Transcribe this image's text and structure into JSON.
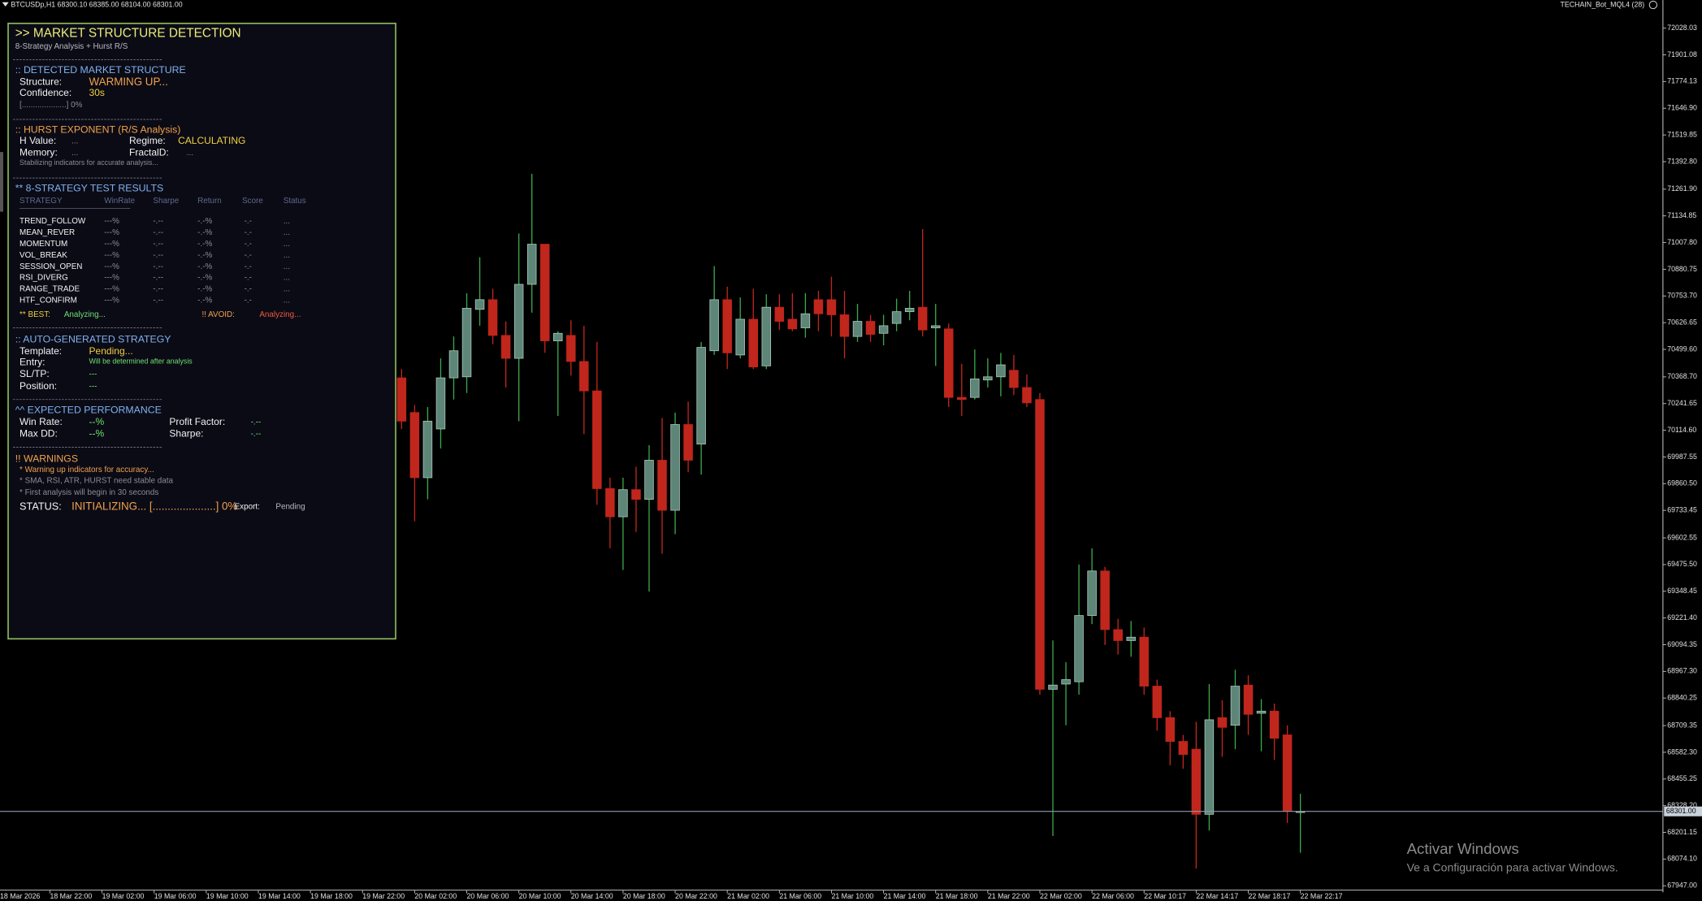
{
  "window": {
    "symbol_info": "BTCUSDp,H1  68300.10 68385.00 68104.00 68301.00",
    "ea_name": "TECHAIN_Bot_MQL4 (28)",
    "watermark_title": "Activar Windows",
    "watermark_text": "Ve a Configuración para activar Windows."
  },
  "panel": {
    "title": ">> MARKET STRUCTURE DETECTION",
    "subtitle": "8-Strategy Analysis + Hurst R/S",
    "structure": {
      "heading": ":: DETECTED MARKET STRUCTURE",
      "structure_label": "Structure:",
      "structure_value": "WARMING UP...",
      "confidence_label": "Confidence:",
      "confidence_value": "30s",
      "progress": "[....................] 0%"
    },
    "hurst": {
      "heading": ":: HURST EXPONENT (R/S Analysis)",
      "h_label": "H Value:",
      "h_value": "...",
      "regime_label": "Regime:",
      "regime_value": "CALCULATING",
      "memory_label": "Memory:",
      "memory_value": "...",
      "fractal_label": "FractalD:",
      "fractal_value": "...",
      "note": "Stabilizing indicators for accurate analysis..."
    },
    "strategies": {
      "heading": "** 8-STRATEGY TEST RESULTS",
      "columns": [
        "STRATEGY",
        "WinRate",
        "Sharpe",
        "Return",
        "Score",
        "Status"
      ],
      "rows": [
        [
          "TREND_FOLLOW",
          "---%",
          "-.--",
          "-.-%",
          "-.-",
          "..."
        ],
        [
          "MEAN_REVER",
          "---%",
          "-.--",
          "-.-%",
          "-.-",
          "..."
        ],
        [
          "MOMENTUM",
          "---%",
          "-.--",
          "-.-%",
          "-.-",
          "..."
        ],
        [
          "VOL_BREAK",
          "---%",
          "-.--",
          "-.-%",
          "-.-",
          "..."
        ],
        [
          "SESSION_OPEN",
          "---%",
          "-.--",
          "-.-%",
          "-.-",
          "..."
        ],
        [
          "RSI_DIVERG",
          "---%",
          "-.--",
          "-.-%",
          "-.-",
          "..."
        ],
        [
          "RANGE_TRADE",
          "---%",
          "-.--",
          "-.-%",
          "-.-",
          "..."
        ],
        [
          "HTF_CONFIRM",
          "---%",
          "-.--",
          "-.-%",
          "-.-",
          "..."
        ]
      ],
      "best_label": "** BEST:",
      "best_value": "Analyzing...",
      "avoid_label": "!! AVOID:",
      "avoid_value": "Analyzing..."
    },
    "auto": {
      "heading": ":: AUTO-GENERATED STRATEGY",
      "template_label": "Template:",
      "template_value": "Pending...",
      "entry_label": "Entry:",
      "entry_value": "Will be determined after analysis",
      "sltp_label": "SL/TP:",
      "sltp_value": "---",
      "position_label": "Position:",
      "position_value": "---"
    },
    "performance": {
      "heading": "^^ EXPECTED PERFORMANCE",
      "winrate_label": "Win Rate:",
      "winrate_value": "--%",
      "pf_label": "Profit Factor:",
      "pf_value": "-.--",
      "maxdd_label": "Max DD:",
      "maxdd_value": "--%",
      "sharpe_label": "Sharpe:",
      "sharpe_value": "-.--"
    },
    "warnings": {
      "heading": "!! WARNINGS",
      "items": [
        "* Warning up indicators for accuracy...",
        "* SMA, RSI, ATR, HURST need stable data",
        "* First analysis will begin in 30 seconds"
      ]
    },
    "status": {
      "label": "STATUS:",
      "value": "INITIALIZING... [.....................] 0%",
      "export_label": "Export:",
      "export_value": "Pending"
    }
  },
  "chart_data": {
    "type": "candlestick",
    "colors": {
      "up": "#5d8678",
      "up_wick": "#3aa84a",
      "down": "#c0261c"
    },
    "ylim": [
      67916,
      72162
    ],
    "yticks": [
      72028.03,
      71901.08,
      71774.13,
      {
        "value": 71646.9,
        "label": "71646.90"
      },
      71519.85,
      {
        "value": 71392.8,
        "label": "71392.80"
      },
      {
        "value": 71261.9,
        "label": "71261.90"
      },
      71134.85,
      {
        "value": 71007.8,
        "label": "71007.80"
      },
      70880.75,
      {
        "value": 70753.7,
        "label": "70753.70"
      },
      70626.65,
      {
        "value": 70499.6,
        "label": "70499.60"
      },
      {
        "value": 70368.7,
        "label": "70368.70"
      },
      70241.65,
      {
        "value": 70114.6,
        "label": "70114.60"
      },
      69987.55,
      {
        "value": 69860.5,
        "label": "69860.50"
      },
      69733.45,
      69602.55,
      {
        "value": 69475.5,
        "label": "69475.50"
      },
      69348.45,
      {
        "value": 69221.4,
        "label": "69221.40"
      },
      69094.35,
      {
        "value": 68967.3,
        "label": "68967.30"
      },
      68840.25,
      68709.35,
      {
        "value": 68582.3,
        "label": "68582.30"
      },
      68455.25,
      {
        "value": 68328.2,
        "label": "68328.20"
      },
      68201.15,
      {
        "value": 68074.1,
        "label": "68074.10"
      },
      {
        "value": 67947,
        "label": "67947.00"
      }
    ],
    "price_line": {
      "value": 68301,
      "label": "68301.00"
    },
    "categories": [
      "18 Mar 2026",
      null,
      null,
      null,
      "18 Mar 22:00",
      null,
      null,
      null,
      "19 Mar 02:00",
      null,
      null,
      null,
      "19 Mar 06:00",
      null,
      null,
      null,
      "19 Mar 10:00",
      null,
      null,
      null,
      "19 Mar 14:00",
      null,
      null,
      null,
      "19 Mar 18:00",
      null,
      null,
      null,
      "19 Mar 22:00",
      null,
      null,
      null,
      "20 Mar 02:00",
      null,
      null,
      null,
      "20 Mar 06:00",
      null,
      null,
      null,
      "20 Mar 10:00",
      null,
      null,
      null,
      "20 Mar 14:00",
      null,
      null,
      null,
      "20 Mar 18:00",
      null,
      null,
      null,
      "20 Mar 22:00",
      null,
      null,
      null,
      "21 Mar 02:00",
      null,
      null,
      null,
      "21 Mar 06:00",
      null,
      null,
      null,
      "21 Mar 10:00",
      null,
      null,
      null,
      "21 Mar 14:00",
      null,
      null,
      null,
      "21 Mar 18:00",
      null,
      null,
      null,
      "21 Mar 22:00",
      null,
      null,
      null,
      "22 Mar 02:00",
      null,
      null,
      null,
      "22 Mar 06:00",
      null,
      null,
      null,
      "22 Mar 10:17",
      null,
      null,
      null,
      "22 Mar 14:17",
      null,
      null,
      null,
      "22 Mar 18:17",
      null,
      null,
      null,
      "22 Mar 22:17"
    ],
    "candles": [
      null,
      null,
      null,
      null,
      null,
      null,
      null,
      null,
      null,
      null,
      null,
      null,
      null,
      null,
      null,
      null,
      null,
      null,
      null,
      null,
      null,
      null,
      null,
      null,
      null,
      null,
      null,
      null,
      null,
      null,
      null,
      {
        "open": 70364,
        "high": 70406,
        "low": 70121,
        "close": 70158
      },
      {
        "open": 70199,
        "high": 70235,
        "low": 69682,
        "close": 69889
      },
      {
        "open": 69889,
        "high": 70225,
        "low": 69786,
        "close": 70158
      },
      {
        "open": 70121,
        "high": 70457,
        "low": 70028,
        "close": 70364
      },
      {
        "open": 70364,
        "high": 70561,
        "low": 70261,
        "close": 70493
      },
      {
        "open": 70369,
        "high": 70767,
        "low": 70292,
        "close": 70695
      },
      {
        "open": 70690,
        "high": 70938,
        "low": 70612,
        "close": 70736
      },
      {
        "open": 70736,
        "high": 70788,
        "low": 70524,
        "close": 70566
      },
      {
        "open": 70566,
        "high": 70633,
        "low": 70318,
        "close": 70457
      },
      {
        "open": 70457,
        "high": 71051,
        "low": 70158,
        "close": 70809
      },
      {
        "open": 70809,
        "high": 71335,
        "low": 70674,
        "close": 71000
      },
      {
        "open": 71000,
        "high": 71000,
        "low": 70483,
        "close": 70540
      },
      {
        "open": 70540,
        "high": 70586,
        "low": 70183,
        "close": 70576
      },
      {
        "open": 70566,
        "high": 70638,
        "low": 70375,
        "close": 70442
      },
      {
        "open": 70442,
        "high": 70612,
        "low": 70096,
        "close": 70302
      },
      {
        "open": 70302,
        "high": 70535,
        "low": 69760,
        "close": 69837
      },
      {
        "open": 69837,
        "high": 69889,
        "low": 69553,
        "close": 69703
      },
      {
        "open": 69703,
        "high": 69889,
        "low": 69450,
        "close": 69832
      },
      {
        "open": 69832,
        "high": 69941,
        "low": 69631,
        "close": 69786
      },
      {
        "open": 69786,
        "high": 70044,
        "low": 69347,
        "close": 69972
      },
      {
        "open": 69972,
        "high": 70173,
        "low": 69527,
        "close": 69734
      },
      {
        "open": 69734,
        "high": 70199,
        "low": 69620,
        "close": 70142
      },
      {
        "open": 70142,
        "high": 70251,
        "low": 69915,
        "close": 69972
      },
      {
        "open": 70049,
        "high": 70535,
        "low": 69904,
        "close": 70509
      },
      {
        "open": 70493,
        "high": 70896,
        "low": 70473,
        "close": 70736
      },
      {
        "open": 70736,
        "high": 70798,
        "low": 70406,
        "close": 70483
      },
      {
        "open": 70473,
        "high": 70747,
        "low": 70457,
        "close": 70643
      },
      {
        "open": 70643,
        "high": 70788,
        "low": 70406,
        "close": 70416
      },
      {
        "open": 70421,
        "high": 70762,
        "low": 70406,
        "close": 70700
      },
      {
        "open": 70700,
        "high": 70762,
        "low": 70592,
        "close": 70633
      },
      {
        "open": 70643,
        "high": 70767,
        "low": 70586,
        "close": 70597
      },
      {
        "open": 70602,
        "high": 70767,
        "low": 70555,
        "close": 70669
      },
      {
        "open": 70736,
        "high": 70778,
        "low": 70586,
        "close": 70669
      },
      {
        "open": 70736,
        "high": 70845,
        "low": 70561,
        "close": 70664
      },
      {
        "open": 70664,
        "high": 70778,
        "low": 70457,
        "close": 70561
      },
      {
        "open": 70561,
        "high": 70716,
        "low": 70535,
        "close": 70633
      },
      {
        "open": 70633,
        "high": 70664,
        "low": 70535,
        "close": 70571
      },
      {
        "open": 70576,
        "high": 70664,
        "low": 70519,
        "close": 70612
      },
      {
        "open": 70623,
        "high": 70741,
        "low": 70586,
        "close": 70679
      },
      {
        "open": 70679,
        "high": 70778,
        "low": 70638,
        "close": 70695
      },
      {
        "open": 70700,
        "high": 71072,
        "low": 70561,
        "close": 70592
      },
      {
        "open": 70602,
        "high": 70716,
        "low": 70421,
        "close": 70612
      },
      {
        "open": 70597,
        "high": 70623,
        "low": 70225,
        "close": 70271
      },
      {
        "open": 70271,
        "high": 70431,
        "low": 70183,
        "close": 70261
      },
      {
        "open": 70271,
        "high": 70499,
        "low": 70261,
        "close": 70359
      },
      {
        "open": 70354,
        "high": 70457,
        "low": 70318,
        "close": 70369
      },
      {
        "open": 70369,
        "high": 70483,
        "low": 70276,
        "close": 70426
      },
      {
        "open": 70400,
        "high": 70473,
        "low": 70282,
        "close": 70318
      },
      {
        "open": 70318,
        "high": 70380,
        "low": 70225,
        "close": 70245
      },
      {
        "open": 70261,
        "high": 70292,
        "low": 68856,
        "close": 68882
      },
      {
        "open": 68882,
        "high": 69114,
        "low": 68184,
        "close": 68902
      },
      {
        "open": 68907,
        "high": 69011,
        "low": 68711,
        "close": 68928
      },
      {
        "open": 68918,
        "high": 69476,
        "low": 68856,
        "close": 69233
      },
      {
        "open": 69233,
        "high": 69553,
        "low": 69192,
        "close": 69445
      },
      {
        "open": 69445,
        "high": 69465,
        "low": 69093,
        "close": 69166
      },
      {
        "open": 69166,
        "high": 69217,
        "low": 69047,
        "close": 69114
      },
      {
        "open": 69114,
        "high": 69207,
        "low": 69037,
        "close": 69130
      },
      {
        "open": 69130,
        "high": 69176,
        "low": 68856,
        "close": 68897
      },
      {
        "open": 68897,
        "high": 68928,
        "low": 68685,
        "close": 68747
      },
      {
        "open": 68747,
        "high": 68778,
        "low": 68520,
        "close": 68634
      },
      {
        "open": 68634,
        "high": 68665,
        "low": 68504,
        "close": 68572
      },
      {
        "open": 68597,
        "high": 68727,
        "low": 68029,
        "close": 68287
      },
      {
        "open": 68287,
        "high": 68907,
        "low": 68210,
        "close": 68737
      },
      {
        "open": 68747,
        "high": 68830,
        "low": 68561,
        "close": 68701
      },
      {
        "open": 68711,
        "high": 68975,
        "low": 68597,
        "close": 68897
      },
      {
        "open": 68902,
        "high": 68949,
        "low": 68665,
        "close": 68763
      },
      {
        "open": 68768,
        "high": 68835,
        "low": 68587,
        "close": 68778
      },
      {
        "open": 68778,
        "high": 68814,
        "low": 68546,
        "close": 68649
      },
      {
        "open": 68665,
        "high": 68711,
        "low": 68246,
        "close": 68303
      },
      {
        "open": 68300.1,
        "high": 68385,
        "low": 68104,
        "close": 68301
      }
    ]
  }
}
